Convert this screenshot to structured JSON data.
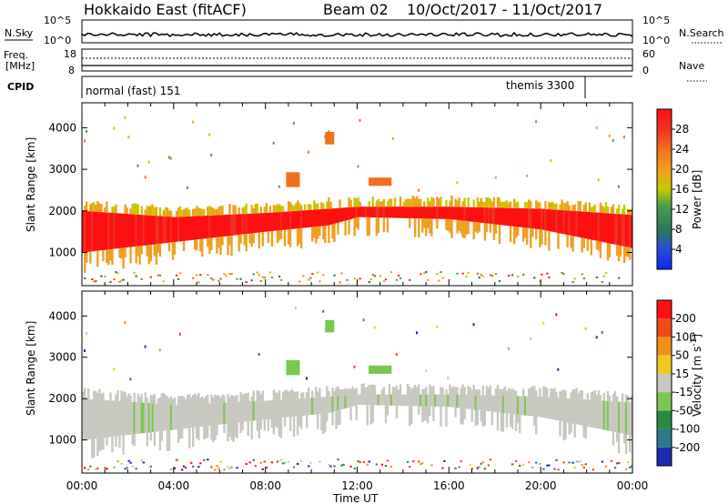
{
  "header": {
    "station": "Hokkaido East (fitACF)",
    "beam": "Beam 02",
    "dates": "10/Oct/2017 - 11/Oct/2017"
  },
  "top_panel": {
    "left_label_1": "N.Sky",
    "left_label_2": "Freq.",
    "left_label_3": "[MHz]",
    "left_label_4": "CPID",
    "right_label_1": "N.Search",
    "right_label_2": "Nave",
    "nsky_ticks": [
      "10^5",
      "10^0"
    ],
    "nsky_ticks_right": [
      "10^5",
      "10^0"
    ],
    "freq_ticks": [
      "18",
      "8"
    ],
    "nave_ticks": [
      "60",
      "0"
    ],
    "cpid_normal": "normal (fast) 151",
    "cpid_themis": "themis 3300"
  },
  "chart_data": [
    {
      "type": "heatmap",
      "title": "",
      "xlabel": "Time UT",
      "ylabel": "Slant Range [km]",
      "xticks": [
        "00:00",
        "04:00",
        "08:00",
        "12:00",
        "16:00",
        "20:00",
        "00:00"
      ],
      "xlim_hours": [
        0,
        24
      ],
      "yticks": [
        "1000",
        "2000",
        "3000",
        "4000"
      ],
      "ylim": [
        200,
        4600
      ],
      "colorbar": {
        "label": "Power [dB]",
        "ticks": [
          "4",
          "8",
          "12",
          "16",
          "20",
          "24",
          "28"
        ],
        "range": [
          0,
          32
        ],
        "colors": [
          "#0a28f0",
          "#2a4ad8",
          "#2a7a5a",
          "#4aa050",
          "#c8c800",
          "#f0a020",
          "#f07020",
          "#f03020",
          "#ff1010"
        ]
      },
      "main_echo_band": {
        "description_ranges_km": [
          {
            "time_h": 0,
            "lower_km": 1000,
            "upper_km": 2000
          },
          {
            "time_h": 4,
            "lower_km": 1250,
            "upper_km": 1850
          },
          {
            "time_h": 8,
            "lower_km": 1500,
            "upper_km": 1950
          },
          {
            "time_h": 10.7,
            "lower_km": 1650,
            "upper_km": 2050
          },
          {
            "time_h": 12,
            "lower_km": 1850,
            "upper_km": 2100
          },
          {
            "time_h": 16,
            "lower_km": 1800,
            "upper_km": 2100
          },
          {
            "time_h": 20,
            "lower_km": 1550,
            "upper_km": 2050
          },
          {
            "time_h": 24,
            "lower_km": 1100,
            "upper_km": 1900
          }
        ]
      }
    },
    {
      "type": "heatmap",
      "title": "",
      "xlabel": "Time UT",
      "ylabel": "Slant Range [km]",
      "xticks": [
        "00:00",
        "04:00",
        "08:00",
        "12:00",
        "16:00",
        "20:00",
        "00:00"
      ],
      "xlim_hours": [
        0,
        24
      ],
      "yticks": [
        "1000",
        "2000",
        "3000",
        "4000"
      ],
      "ylim": [
        200,
        4600
      ],
      "colorbar": {
        "label": "Velocity [m s^-1]",
        "ticks": [
          "200",
          "100",
          "50",
          "15",
          "-15",
          "-50",
          "-100",
          "-200"
        ],
        "range": [
          -250,
          250
        ],
        "colors": [
          "#1e2ab4",
          "#2a7a8a",
          "#2a8a40",
          "#7ac850",
          "#c8c8c0",
          "#f0c820",
          "#f0901a",
          "#f04a1a",
          "#ff1010"
        ]
      }
    }
  ]
}
